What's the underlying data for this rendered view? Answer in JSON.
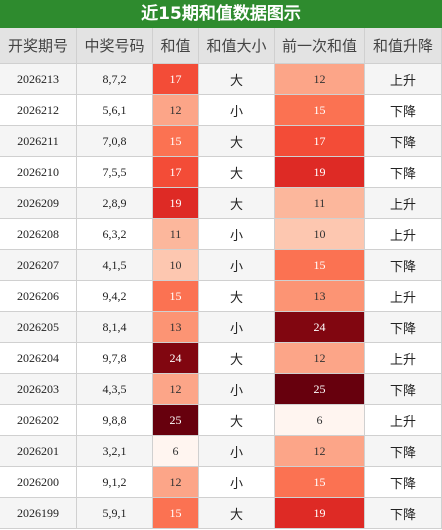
{
  "title": "近15期和值数据图示",
  "table": {
    "headers": [
      "开奖期号",
      "中奖号码",
      "和值",
      "和值大小",
      "前一次和值",
      "和值升降"
    ],
    "rows": [
      [
        "2026213",
        "8,7,2",
        17,
        "大",
        12,
        "上升"
      ],
      [
        "2026212",
        "5,6,1",
        12,
        "小",
        15,
        "下降"
      ],
      [
        "2026211",
        "7,0,8",
        15,
        "大",
        17,
        "下降"
      ],
      [
        "2026210",
        "7,5,5",
        17,
        "大",
        19,
        "下降"
      ],
      [
        "2026209",
        "2,8,9",
        19,
        "大",
        11,
        "上升"
      ],
      [
        "2026208",
        "6,3,2",
        11,
        "小",
        10,
        "上升"
      ],
      [
        "2026207",
        "4,1,5",
        10,
        "小",
        15,
        "下降"
      ],
      [
        "2026206",
        "9,4,2",
        15,
        "大",
        13,
        "上升"
      ],
      [
        "2026205",
        "8,1,4",
        13,
        "小",
        24,
        "下降"
      ],
      [
        "2026204",
        "9,7,8",
        24,
        "大",
        12,
        "上升"
      ],
      [
        "2026203",
        "4,3,5",
        12,
        "小",
        25,
        "下降"
      ],
      [
        "2026202",
        "9,8,8",
        25,
        "大",
        6,
        "上升"
      ],
      [
        "2026201",
        "3,2,1",
        6,
        "小",
        12,
        "下降"
      ],
      [
        "2026200",
        "9,1,2",
        12,
        "小",
        15,
        "下降"
      ],
      [
        "2026199",
        "5,9,1",
        15,
        "大",
        19,
        "下降"
      ]
    ]
  }
}
